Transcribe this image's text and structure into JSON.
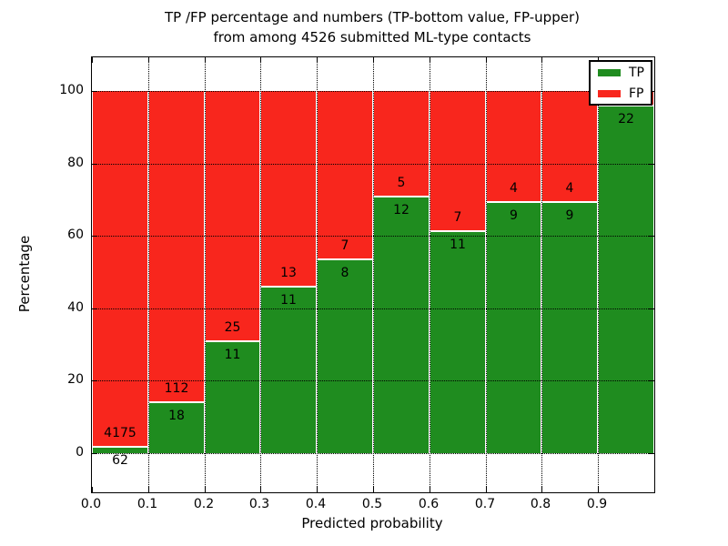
{
  "figure": {
    "title_line1": "TP /FP percentage and numbers (TP-bottom value, FP-upper)",
    "title_line2": "from among 4526 submitted ML-type contacts",
    "xlabel": "Predicted probability",
    "ylabel": "Percentage"
  },
  "legend": {
    "entries": [
      {
        "label": "TP",
        "color": "#1f8c1f"
      },
      {
        "label": "FP",
        "color": "#f8261d"
      }
    ]
  },
  "chart_data": {
    "type": "bar",
    "subtype": "stacked-percentage-histogram",
    "title": "TP /FP percentage and numbers (TP-bottom value, FP-upper) from among 4526 submitted ML-type contacts",
    "xlabel": "Predicted probability",
    "ylabel": "Percentage",
    "xlim": [
      0.0,
      1.0
    ],
    "ylim": [
      -10,
      110
    ],
    "x_tick_labels": [
      "0.0",
      "0.1",
      "0.2",
      "0.3",
      "0.4",
      "0.5",
      "0.6",
      "0.7",
      "0.8",
      "0.9"
    ],
    "y_ticks": [
      0,
      20,
      40,
      60,
      80,
      100
    ],
    "grid": true,
    "legend_position": "upper right",
    "series": [
      {
        "name": "TP",
        "color": "#1f8c1f",
        "stack_order": "bottom"
      },
      {
        "name": "FP",
        "color": "#f8261d",
        "stack_order": "top"
      }
    ],
    "bars": [
      {
        "bin_start": 0.0,
        "bin_end": 0.1,
        "tp_count_label": "62",
        "fp_count_label": "4175",
        "tp_pct": 1.5
      },
      {
        "bin_start": 0.1,
        "bin_end": 0.2,
        "tp_count_label": "18",
        "fp_count_label": "112",
        "tp_pct": 13.8
      },
      {
        "bin_start": 0.2,
        "bin_end": 0.3,
        "tp_count_label": "11",
        "fp_count_label": "25",
        "tp_pct": 30.6
      },
      {
        "bin_start": 0.3,
        "bin_end": 0.4,
        "tp_count_label": "11",
        "fp_count_label": "13",
        "tp_pct": 45.8
      },
      {
        "bin_start": 0.4,
        "bin_end": 0.5,
        "tp_count_label": "8",
        "fp_count_label": "7",
        "tp_pct": 53.3
      },
      {
        "bin_start": 0.5,
        "bin_end": 0.6,
        "tp_count_label": "12",
        "fp_count_label": "5",
        "tp_pct": 70.6
      },
      {
        "bin_start": 0.6,
        "bin_end": 0.7,
        "tp_count_label": "11",
        "fp_count_label": "7",
        "tp_pct": 61.1
      },
      {
        "bin_start": 0.7,
        "bin_end": 0.8,
        "tp_count_label": "9",
        "fp_count_label": "4",
        "tp_pct": 69.2
      },
      {
        "bin_start": 0.8,
        "bin_end": 0.9,
        "tp_count_label": "9",
        "fp_count_label": "4",
        "tp_pct": 69.2
      },
      {
        "bin_start": 0.9,
        "bin_end": 1.0,
        "tp_count_label": "22",
        "fp_count_label": "",
        "tp_pct": 95.7
      }
    ]
  }
}
